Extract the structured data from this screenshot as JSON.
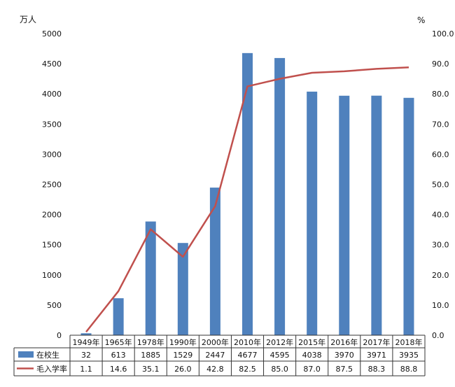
{
  "chart_data": {
    "type": "bar",
    "categories": [
      "1949年",
      "1965年",
      "1978年",
      "1990年",
      "2000年",
      "2010年",
      "2012年",
      "2015年",
      "2016年",
      "2017年",
      "2018年"
    ],
    "series": [
      {
        "name": "在校生",
        "type": "bar",
        "axis": "left",
        "color": "#4f81bd",
        "values": [
          32,
          613,
          1885,
          1529,
          2447,
          4677,
          4595,
          4038,
          3970,
          3971,
          3935
        ]
      },
      {
        "name": "毛入学率",
        "type": "line",
        "axis": "right",
        "color": "#c0504d",
        "values": [
          1.1,
          14.6,
          35.1,
          26.0,
          42.8,
          82.5,
          85.0,
          87.0,
          87.5,
          88.3,
          88.8
        ]
      }
    ],
    "left_axis": {
      "unit": "万人",
      "ylim": [
        0,
        5000
      ],
      "ticks": [
        0,
        500,
        1000,
        1500,
        2000,
        2500,
        3000,
        3500,
        4000,
        4500,
        5000
      ]
    },
    "right_axis": {
      "unit": "%",
      "ylim": [
        0,
        100
      ],
      "ticks": [
        "0.0",
        "10.0",
        "20.0",
        "30.0",
        "40.0",
        "50.0",
        "60.0",
        "70.0",
        "80.0",
        "90.0",
        "100.0"
      ]
    },
    "grid": false,
    "legend": "data-table",
    "table_values": {
      "在校生": [
        "32",
        "613",
        "1885",
        "1529",
        "2447",
        "4677",
        "4595",
        "4038",
        "3970",
        "3971",
        "3935"
      ],
      "毛入学率": [
        "1.1",
        "14.6",
        "35.1",
        "26.0",
        "42.8",
        "82.5",
        "85.0",
        "87.0",
        "87.5",
        "88.3",
        "88.8"
      ]
    }
  }
}
